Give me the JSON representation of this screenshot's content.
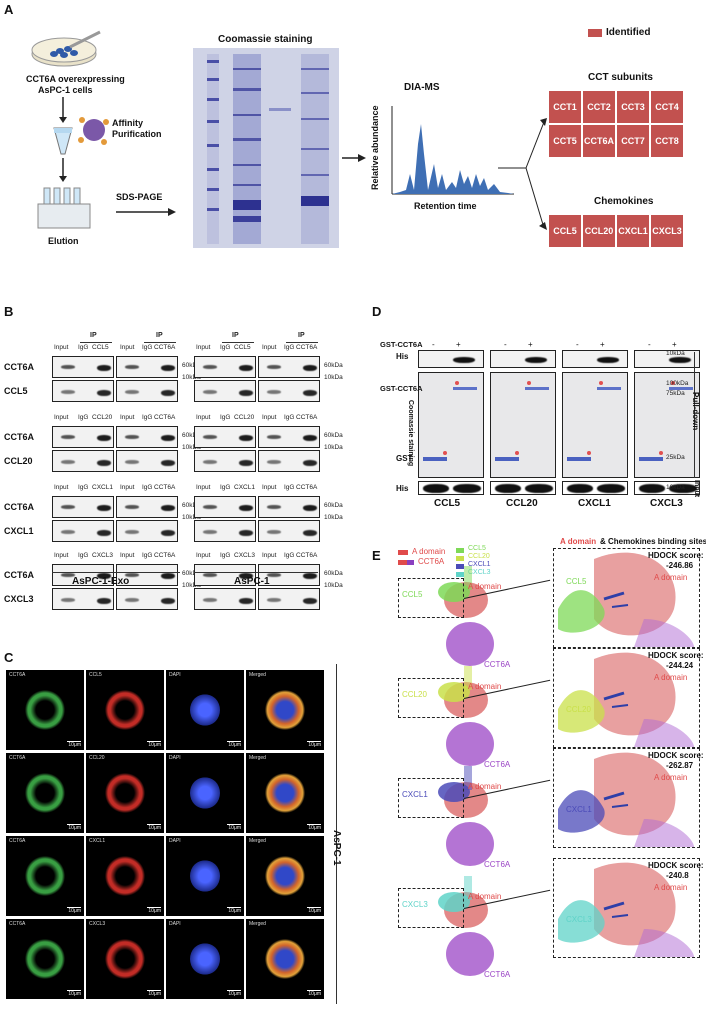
{
  "panels": {
    "a": "A",
    "b": "B",
    "c": "C",
    "d": "D",
    "e": "E"
  },
  "panel_a": {
    "cells_label_1": "CCT6A overexpressing",
    "cells_label_2": "AsPC-1 cells",
    "affinity_1": "Affinity",
    "affinity_2": "Purification",
    "elution": "Elution",
    "sds_page": "SDS-PAGE",
    "coomassie": "Coomassie staining",
    "dia_ms": "DIA-MS",
    "y_axis": "Relative abundance",
    "x_axis": "Retention time",
    "legend": "Identified",
    "legend_color": "#c2514f",
    "cct_title": "CCT subunits",
    "cct": [
      "CCT1",
      "CCT2",
      "CCT3",
      "CCT4",
      "CCT5",
      "CCT6A",
      "CCT7",
      "CCT8"
    ],
    "chemo_title": "Chemokines",
    "chemokines": [
      "CCL5",
      "CCL20",
      "CXCL1",
      "CXCL3"
    ]
  },
  "panel_b": {
    "ip": "IP",
    "input": "Input",
    "igg": "IgG",
    "rows": [
      {
        "top": "CCT6A",
        "bottom": "CCL5",
        "ip2": "CCL5"
      },
      {
        "top": "CCT6A",
        "bottom": "CCL20",
        "ip2": "CCL20"
      },
      {
        "top": "CCT6A",
        "bottom": "CXCL1",
        "ip2": "CXCL1"
      },
      {
        "top": "CCT6A",
        "bottom": "CXCL3",
        "ip2": "CXCL3"
      }
    ],
    "ip_cct6a": "CCT6A",
    "mw_top": "60kDa",
    "mw_bottom": "10kDa",
    "group_left": "AsPC-1-Exo",
    "group_right": "AsPC-1"
  },
  "panel_c": {
    "cols": [
      "CCT6A",
      "DAPI",
      "Merged"
    ],
    "rows": [
      "CCL5",
      "CCL20",
      "CXCL1",
      "CXCL3"
    ],
    "scale": "10μm",
    "side": "AsPC-1"
  },
  "panel_d": {
    "gst_cct6a": "GST-CCT6A",
    "minus": "-",
    "plus": "+",
    "his": "His",
    "gst_cct6a_row": "GST-CCT6A",
    "coomassie_staining": "Coomassie staining",
    "gst": "GST",
    "mw": [
      "10kDa",
      "100kDa",
      "75kDa",
      "25kDa",
      "10kDa"
    ],
    "pull_down": "Pull-down",
    "input": "Input",
    "lanes": [
      "CCL5",
      "CCL20",
      "CXCL1",
      "CXCL3"
    ]
  },
  "panel_e": {
    "legend_a": "A domain",
    "legend_cct6a": "CCT6A",
    "legend_chemo": [
      "CCL5",
      "CCL20",
      "CXCL1",
      "CXCL3"
    ],
    "header_a": "A domain",
    "header_rest": "& Chemokines binding sites",
    "hdock_label": "HDOCK score:",
    "models": [
      {
        "chemokine": "CCL5",
        "score": "-246.86",
        "color": "#7ed957"
      },
      {
        "chemokine": "CCL20",
        "score": "-244.24",
        "color": "#c9e04a"
      },
      {
        "chemokine": "CXCL1",
        "score": "-262.87",
        "color": "#4b4bb8"
      },
      {
        "chemokine": "CXCL3",
        "score": "-240.8",
        "color": "#5fd3c8"
      }
    ],
    "a_domain": "A domain",
    "cct6a": "CCT6A"
  }
}
